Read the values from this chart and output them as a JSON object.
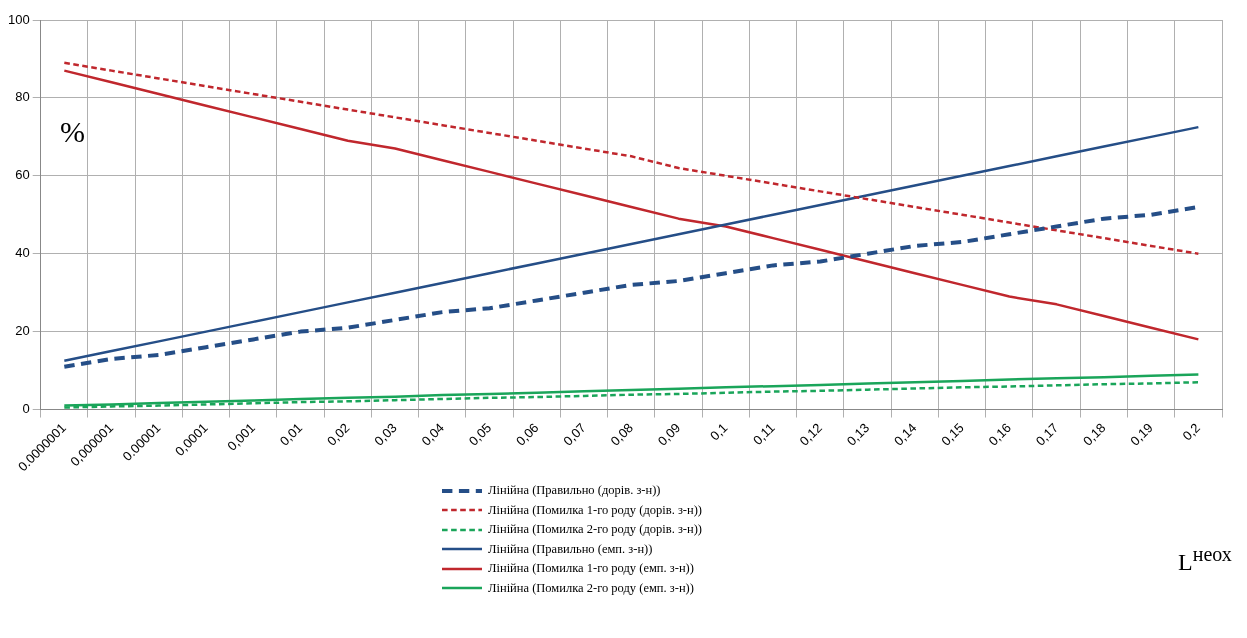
{
  "chart_data": {
    "type": "line",
    "categories": [
      "0.0000001",
      "0,000001",
      "0.00001",
      "0,0001",
      "0,001",
      "0,01",
      "0,02",
      "0,03",
      "0,04",
      "0,05",
      "0,06",
      "0,07",
      "0,08",
      "0,09",
      "0,1",
      "0,11",
      "0,12",
      "0,13",
      "0,14",
      "0,15",
      "0,16",
      "0,17",
      "0,18",
      "0,19",
      "0,2"
    ],
    "ylim": [
      0,
      100
    ],
    "yticks": [
      0,
      20,
      40,
      60,
      80,
      100
    ],
    "grid": true,
    "legend": "bottom",
    "marker": "none",
    "annotations": [
      "%",
      "L$^{неох}$"
    ],
    "series": [
      {
        "name": "Лінійна (Правильно (дорів. з-н))",
        "color": "#254e87",
        "line_style": "dashed",
        "values": [
          11,
          13,
          14,
          16,
          18,
          20,
          21,
          23,
          25,
          26,
          28,
          30,
          32,
          33,
          35,
          37,
          38,
          40,
          42,
          43,
          45,
          47,
          49,
          50,
          52
        ]
      },
      {
        "name": "Лінійна (Помилка 1-го роду (дорів. з-н))",
        "color": "#c0272d",
        "line_style": "dashed",
        "values": [
          89,
          87,
          85,
          83,
          81,
          79,
          77,
          75,
          73,
          71,
          69,
          67,
          65,
          62,
          60,
          58,
          56,
          54,
          52,
          50,
          48,
          46,
          44,
          42,
          40
        ]
      },
      {
        "name": "Лінійна (Помилка 2-го роду (дорів. з-н))",
        "color": "#1aa55a",
        "line_style": "dashed",
        "values": [
          0.5,
          0.8,
          1,
          1.3,
          1.6,
          1.9,
          2.1,
          2.4,
          2.7,
          3,
          3.2,
          3.5,
          3.8,
          4,
          4.3,
          4.6,
          4.8,
          5.1,
          5.4,
          5.7,
          5.9,
          6.2,
          6.5,
          6.7,
          7
        ]
      },
      {
        "name": "Лінійна (Правильно (емп. з-н))",
        "color": "#254e87",
        "line_style": "solid",
        "values": [
          12.5,
          15,
          17.5,
          20,
          22.5,
          25,
          27.5,
          30,
          32.5,
          35,
          37.5,
          40,
          42.5,
          45,
          47.5,
          50,
          52.5,
          55,
          57.5,
          60,
          62.5,
          65,
          67.5,
          70,
          72.5
        ]
      },
      {
        "name": "Лінійна (Помилка 1-го роду (емп. з-н))",
        "color": "#c0272d",
        "line_style": "solid",
        "values": [
          87,
          84,
          81,
          78,
          75,
          72,
          69,
          67,
          64,
          61,
          58,
          55,
          52,
          49,
          47,
          44,
          41,
          38,
          35,
          32,
          29,
          27,
          24,
          21,
          18
        ]
      },
      {
        "name": "Лінійна (Помилка 2-го роду (емп. з-н))",
        "color": "#1aa55a",
        "line_style": "solid",
        "values": [
          1,
          1.3,
          1.7,
          2,
          2.3,
          2.7,
          3,
          3.3,
          3.7,
          4,
          4.3,
          4.7,
          5,
          5.3,
          5.7,
          6,
          6.3,
          6.7,
          7,
          7.3,
          7.7,
          8,
          8.3,
          8.7,
          9
        ]
      }
    ]
  }
}
